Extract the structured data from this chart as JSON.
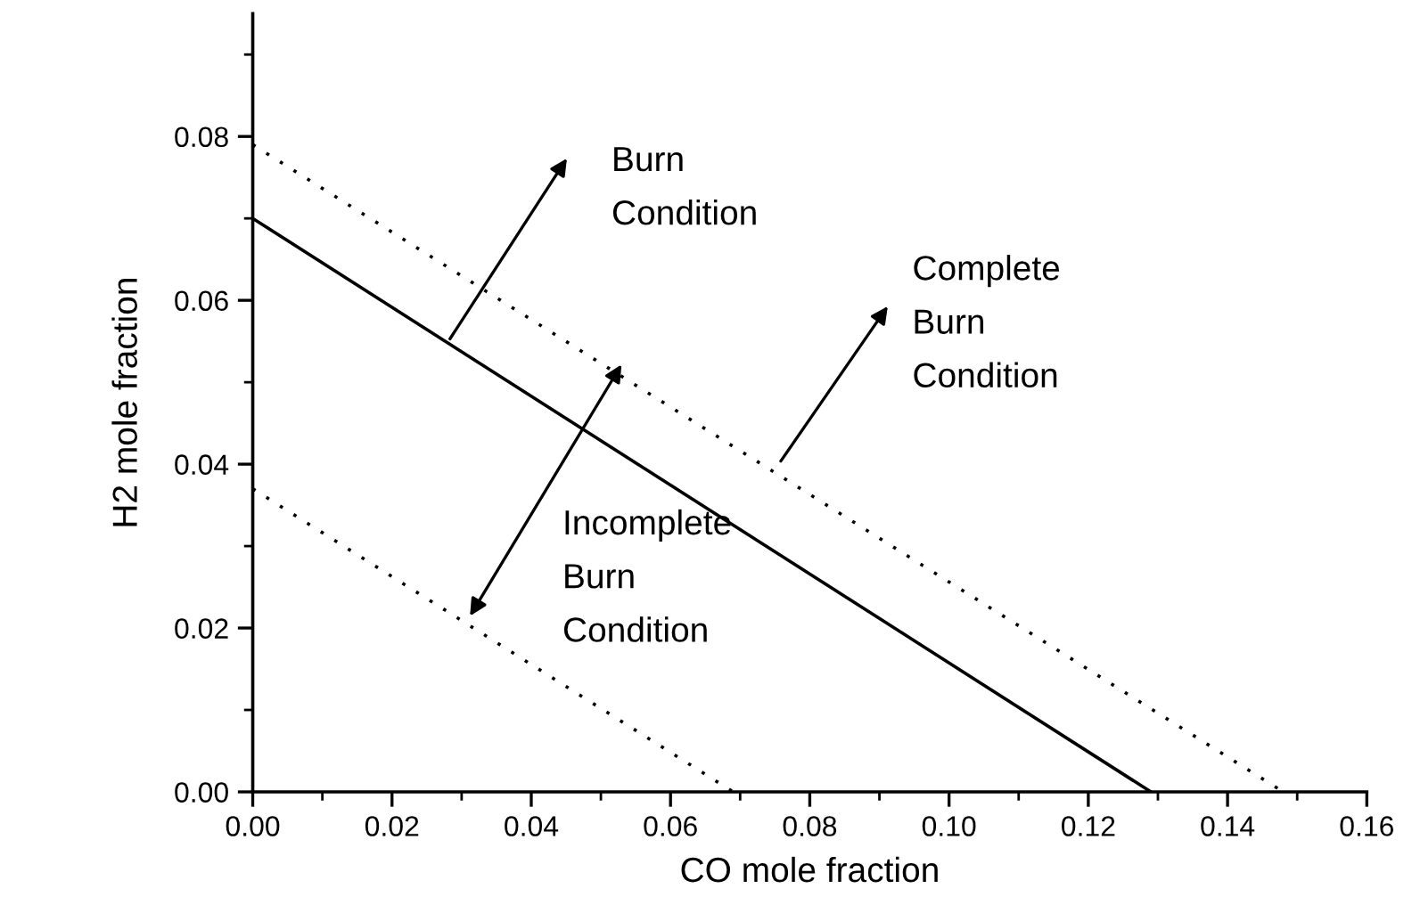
{
  "chart_data": {
    "type": "line",
    "xlabel": "CO mole fraction",
    "ylabel": "H2 mole fraction",
    "xlim": [
      0,
      0.16
    ],
    "ylim": [
      0,
      0.095
    ],
    "xticks": [
      {
        "value": 0,
        "label": "0.00"
      },
      0.02,
      0.04,
      0.06,
      0.08,
      {
        "value": 0.1,
        "label": "0.10"
      },
      0.12,
      0.14,
      0.16
    ],
    "yticks": [
      {
        "value": 0,
        "label": "0.00"
      },
      0.02,
      0.04,
      0.06,
      0.08
    ],
    "grid": false,
    "legend": false,
    "marker": "none",
    "series": [
      {
        "x": [
          0,
          0.129
        ],
        "values": [
          0.07,
          0
        ],
        "color": "#000000",
        "line_style": "solid"
      },
      {
        "x": [
          0,
          0.148
        ],
        "values": [
          0.079,
          0
        ],
        "color": "#000000",
        "line_style": "dotted"
      },
      {
        "x": [
          0,
          0.069
        ],
        "values": [
          0.037,
          0
        ],
        "color": "#000000",
        "line_style": "dotted"
      }
    ],
    "annotations": [
      "Burn\nCondition",
      "Complete\nBurn\nCondition",
      "Incomplete\nBurn\nCondition"
    ]
  }
}
